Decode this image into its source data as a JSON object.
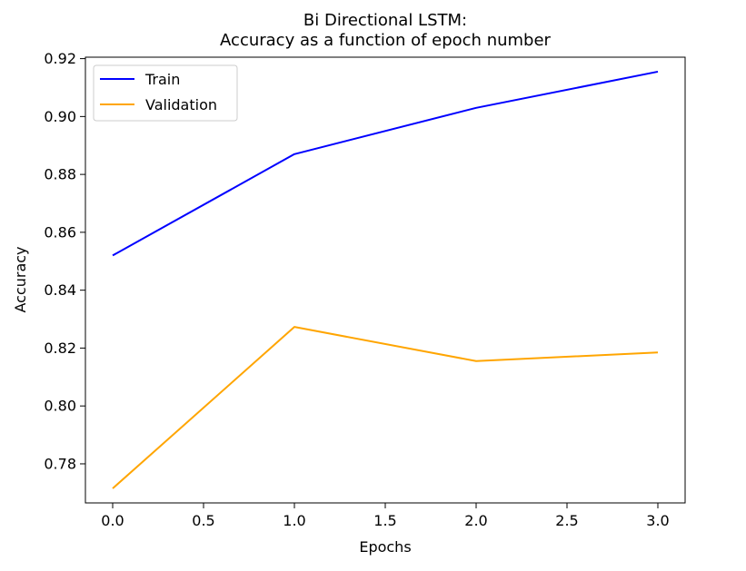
{
  "chart_data": {
    "type": "line",
    "title": [
      "Bi Directional LSTM:",
      "Accuracy as a function of epoch number"
    ],
    "xlabel": "Epochs",
    "ylabel": "Accuracy",
    "x": [
      0,
      1,
      2,
      3
    ],
    "series": [
      {
        "name": "Train",
        "color": "#0000ff",
        "values": [
          0.852,
          0.887,
          0.903,
          0.9155
        ]
      },
      {
        "name": "Validation",
        "color": "#ffa500",
        "values": [
          0.7715,
          0.8273,
          0.8155,
          0.8185
        ]
      }
    ],
    "xlim": [
      -0.15,
      3.15
    ],
    "ylim": [
      0.7665,
      0.9205
    ],
    "xticks": [
      0.0,
      0.5,
      1.0,
      1.5,
      2.0,
      2.5,
      3.0
    ],
    "xtick_labels": [
      "0.0",
      "0.5",
      "1.0",
      "1.5",
      "2.0",
      "2.5",
      "3.0"
    ],
    "yticks": [
      0.78,
      0.8,
      0.82,
      0.84,
      0.86,
      0.88,
      0.9,
      0.92
    ],
    "ytick_labels": [
      "0.78",
      "0.80",
      "0.82",
      "0.84",
      "0.86",
      "0.88",
      "0.90",
      "0.92"
    ],
    "grid": false,
    "legend_position": "upper-left"
  }
}
